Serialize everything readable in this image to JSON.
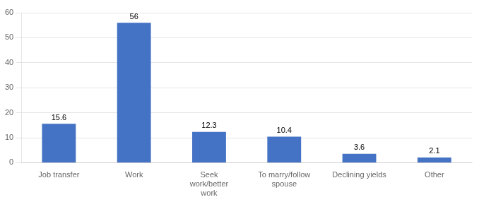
{
  "chart_data": {
    "type": "bar",
    "categories": [
      "Job transfer",
      "Work",
      "Seek\nwork/better\nwork",
      "To marry/follow\nspouse",
      "Declining yields",
      "Other"
    ],
    "values": [
      15.6,
      56,
      12.3,
      10.4,
      3.6,
      2.1
    ],
    "color": "#4472C4",
    "ylim": [
      0,
      60
    ],
    "yticks": [
      0,
      10,
      20,
      30,
      40,
      50,
      60
    ],
    "grid": true,
    "data_labels": true
  }
}
